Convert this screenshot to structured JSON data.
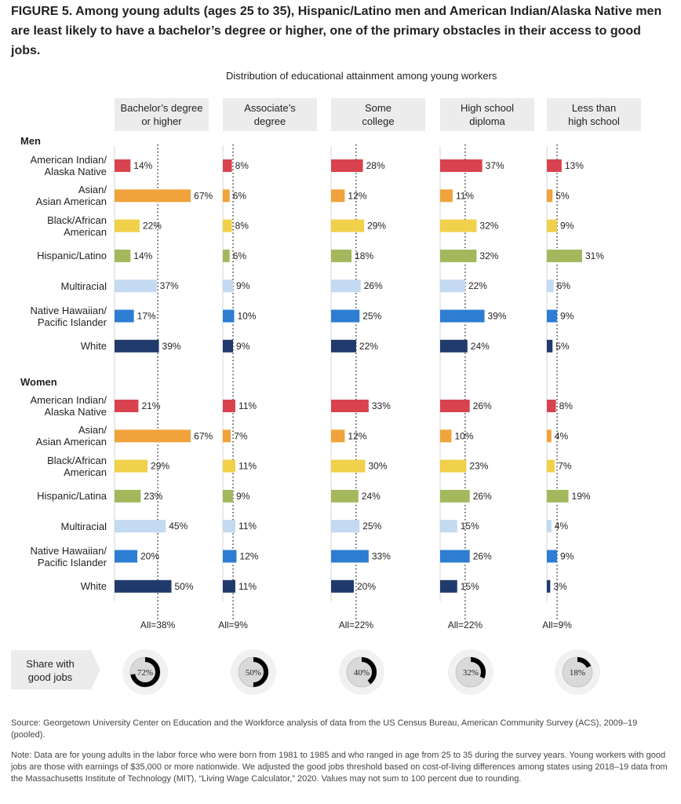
{
  "figure": {
    "label": "FIGURE 5.",
    "title": "Among young adults (ages 25 to 35), Hispanic/Latino men and American Indian/Alaska Native men are least likely to have a bachelor’s degree or higher, one of the primary obstacles in their access to good jobs."
  },
  "chart_data": {
    "type": "bar",
    "title": "Distribution of educational attainment among young workers",
    "columns": [
      "Bachelor’s degree or higher",
      "Associate’s degree",
      "Some college",
      "High school diploma",
      "Less than high school"
    ],
    "column_lines": [
      [
        "Bachelor’s degree",
        "or higher"
      ],
      [
        "Associate’s",
        "degree"
      ],
      [
        "Some",
        "college"
      ],
      [
        "High school",
        "diploma"
      ],
      [
        "Less than",
        "high school"
      ]
    ],
    "all_labels": [
      "All=38%",
      "All=9%",
      "All=22%",
      "All=22%",
      "All=9%"
    ],
    "all_values": [
      38,
      9,
      22,
      22,
      9
    ],
    "share_good_jobs": [
      72,
      50,
      40,
      32,
      18
    ],
    "share_label": "Share with good jobs",
    "share_label_lines": [
      "Share with",
      "good jobs"
    ],
    "groups": [
      {
        "name": "Men",
        "rows": [
          {
            "label": "American Indian/ Alaska Native",
            "lines": [
              "American Indian/",
              "Alaska Native"
            ],
            "color": "#d9434f",
            "values": [
              14,
              8,
              28,
              37,
              13
            ]
          },
          {
            "label": "Asian/ Asian American",
            "lines": [
              "Asian/",
              "Asian American"
            ],
            "color": "#f0a33a",
            "values": [
              67,
              6,
              12,
              11,
              5
            ]
          },
          {
            "label": "Black/African American",
            "lines": [
              "Black/African",
              "American"
            ],
            "color": "#f1d04a",
            "values": [
              22,
              8,
              29,
              32,
              9
            ]
          },
          {
            "label": "Hispanic/Latino",
            "lines": [
              "Hispanic/Latino"
            ],
            "color": "#a3b85c",
            "values": [
              14,
              6,
              18,
              32,
              31
            ]
          },
          {
            "label": "Multiracial",
            "lines": [
              "Multiracial"
            ],
            "color": "#c3daf0",
            "values": [
              37,
              9,
              26,
              22,
              6
            ]
          },
          {
            "label": "Native Hawaiian/ Pacific Islander",
            "lines": [
              "Native Hawaiian/",
              "Pacific Islander"
            ],
            "color": "#2d7dd2",
            "values": [
              17,
              10,
              25,
              39,
              9
            ]
          },
          {
            "label": "White",
            "lines": [
              "White"
            ],
            "color": "#1f3a6b",
            "values": [
              39,
              9,
              22,
              24,
              5
            ]
          }
        ]
      },
      {
        "name": "Women",
        "rows": [
          {
            "label": "American Indian/ Alaska Native",
            "lines": [
              "American Indian/",
              "Alaska Native"
            ],
            "color": "#d9434f",
            "values": [
              21,
              11,
              33,
              26,
              8
            ]
          },
          {
            "label": "Asian/ Asian American",
            "lines": [
              "Asian/",
              "Asian American"
            ],
            "color": "#f0a33a",
            "values": [
              67,
              7,
              12,
              10,
              4
            ]
          },
          {
            "label": "Black/African American",
            "lines": [
              "Black/African",
              "American"
            ],
            "color": "#f1d04a",
            "values": [
              29,
              11,
              30,
              23,
              7
            ]
          },
          {
            "label": "Hispanic/Latina",
            "lines": [
              "Hispanic/Latina"
            ],
            "color": "#a3b85c",
            "values": [
              23,
              9,
              24,
              26,
              19
            ]
          },
          {
            "label": "Multiracial",
            "lines": [
              "Multiracial"
            ],
            "color": "#c3daf0",
            "values": [
              45,
              11,
              25,
              15,
              4
            ]
          },
          {
            "label": "Native Hawaiian/ Pacific Islander",
            "lines": [
              "Native Hawaiian/",
              "Pacific Islander"
            ],
            "color": "#2d7dd2",
            "values": [
              20,
              12,
              33,
              26,
              9
            ]
          },
          {
            "label": "White",
            "lines": [
              "White"
            ],
            "color": "#1f3a6b",
            "values": [
              50,
              11,
              20,
              15,
              3
            ]
          }
        ]
      }
    ]
  },
  "notes": {
    "source": "Source: Georgetown University Center on Education and the Workforce analysis of data from the US Census Bureau, American Community Survey (ACS), 2009–19 (pooled).",
    "note": "Note: Data are for young adults in the labor force who were born from 1981 to 1985 and who ranged in age from 25 to 35 during the survey years. Young workers with good jobs are those with earnings of $35,000 or more nationwide. We adjusted the good jobs threshold based on cost-of-living differences among states using 2018–19 data from the Massachusetts Institute of Technology (MIT), “Living Wage Calculator,” 2020. Values may not sum to 100 percent due to rounding."
  }
}
